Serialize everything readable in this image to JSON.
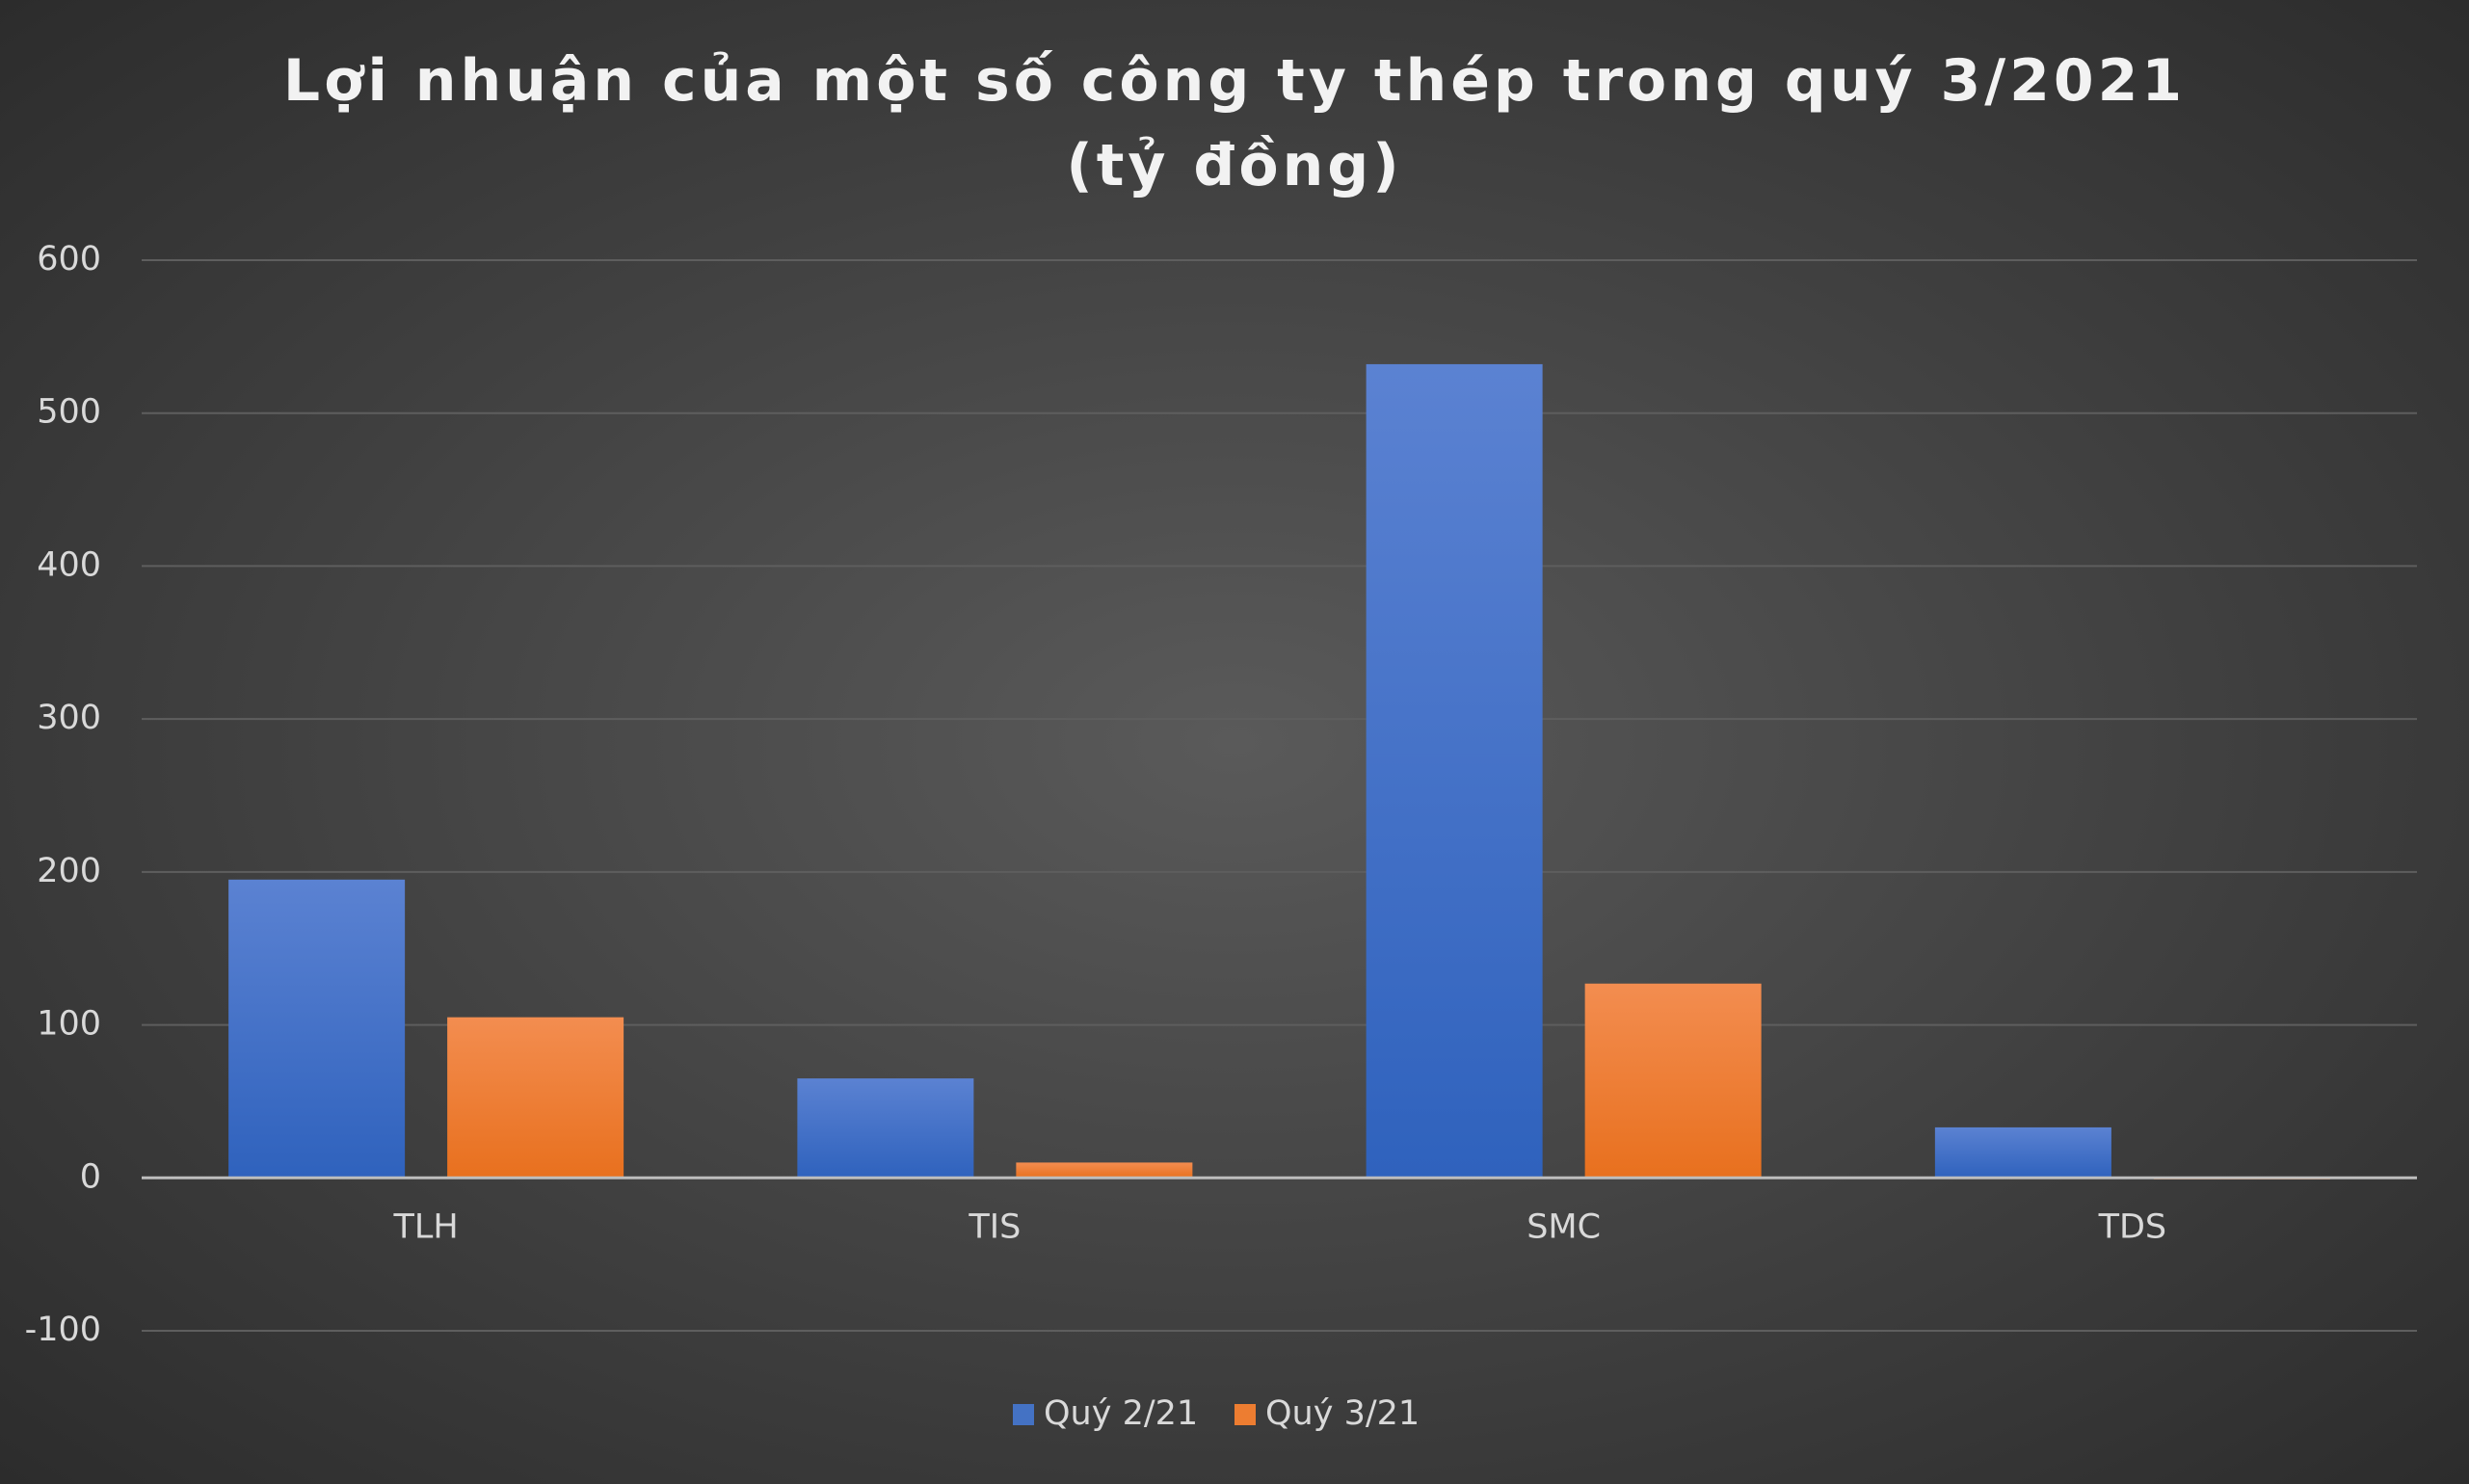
{
  "chart_data": {
    "type": "bar",
    "title": "Lợi nhuận của một số công ty thép trong quý 3/2021 (tỷ đồng)",
    "categories": [
      "TLH",
      "TIS",
      "SMC",
      "TDS"
    ],
    "series": [
      {
        "name": "Quý 2/21",
        "color": "#4472c4",
        "values": [
          195,
          65,
          532,
          33
        ]
      },
      {
        "name": "Quý 3/21",
        "color": "#ed7d31",
        "values": [
          105,
          10,
          127,
          -1
        ]
      }
    ],
    "ylim": [
      -100,
      600
    ],
    "yticks": [
      -100,
      0,
      100,
      200,
      300,
      400,
      500,
      600
    ],
    "grid": true,
    "legend": "bottom"
  }
}
